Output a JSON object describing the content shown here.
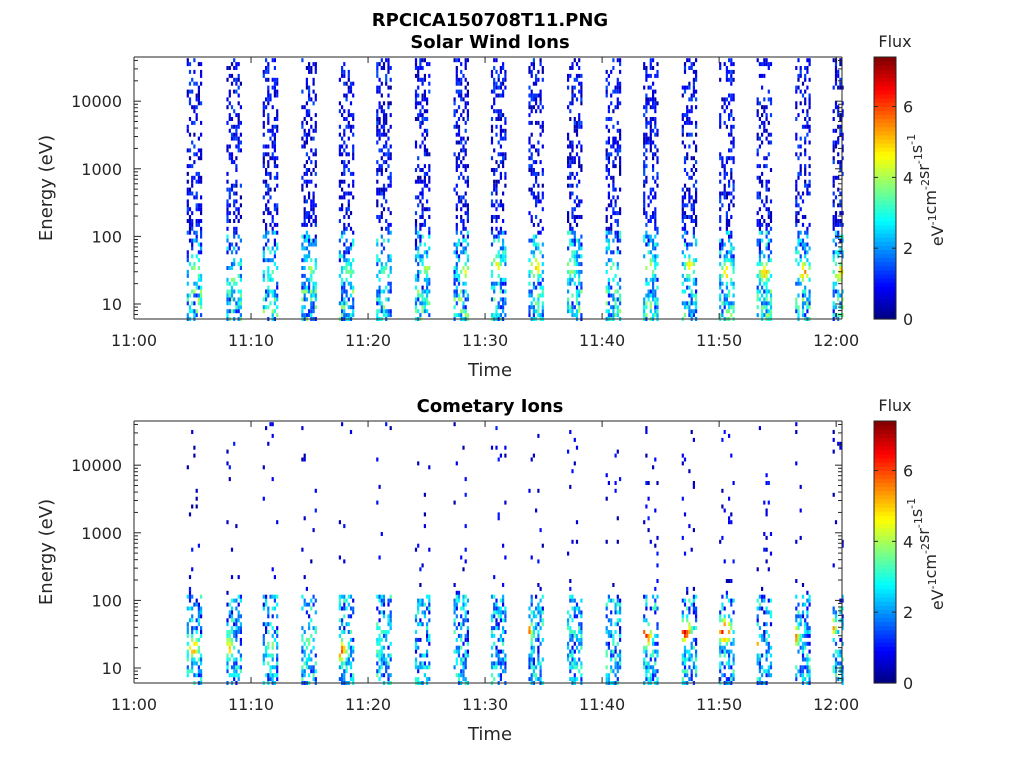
{
  "figure": {
    "title_line1": "RPCICA150708T11.PNG"
  },
  "chart_data": [
    {
      "type": "heatmap",
      "title": "Solar Wind Ions",
      "xlabel": "Time",
      "ylabel": "Energy (eV)",
      "x_ticks": [
        "11:00",
        "11:10",
        "11:20",
        "11:30",
        "11:40",
        "11:50",
        "12:00"
      ],
      "x_range_minutes": [
        0,
        60.5
      ],
      "y_scale": "log",
      "y_ticks": [
        10,
        100,
        1000,
        10000
      ],
      "y_tick_labels": [
        "10",
        "100",
        "1000",
        "10000"
      ],
      "y_range": [
        6,
        45000
      ],
      "colorbar": {
        "title": "Flux",
        "unit_label": "eV-1cm-2sr-1s-1",
        "ticks": [
          0,
          2,
          4,
          6
        ],
        "range": [
          0,
          7.4
        ],
        "colormap": "jet"
      },
      "sweep_start_minutes": [
        4.5,
        7.9,
        11.0,
        14.3,
        17.5,
        20.7,
        24.0,
        27.3,
        30.5,
        33.7,
        37.0,
        40.3,
        43.5,
        46.8,
        50.0,
        53.2,
        56.5,
        59.7
      ],
      "sweep_peaks": [
        {
          "t": 5.1,
          "e": 30,
          "flux": 4.0
        },
        {
          "t": 8.4,
          "e": 25,
          "flux": 3.5
        },
        {
          "t": 11.7,
          "e": 30,
          "flux": 3.0
        },
        {
          "t": 15.0,
          "e": 35,
          "flux": 3.6
        },
        {
          "t": 18.2,
          "e": 30,
          "flux": 3.4
        },
        {
          "t": 21.4,
          "e": 30,
          "flux": 3.2
        },
        {
          "t": 25.0,
          "e": 35,
          "flux": 3.8
        },
        {
          "t": 28.2,
          "e": 30,
          "flux": 4.0
        },
        {
          "t": 30.9,
          "e": 35,
          "flux": 4.4
        },
        {
          "t": 34.2,
          "e": 35,
          "flux": 4.8
        },
        {
          "t": 37.3,
          "e": 35,
          "flux": 4.0
        },
        {
          "t": 40.8,
          "e": 30,
          "flux": 3.6
        },
        {
          "t": 44.0,
          "e": 35,
          "flux": 4.2
        },
        {
          "t": 47.4,
          "e": 35,
          "flux": 4.4
        },
        {
          "t": 50.6,
          "e": 30,
          "flux": 5.0
        },
        {
          "t": 53.8,
          "e": 30,
          "flux": 4.8
        },
        {
          "t": 57.2,
          "e": 30,
          "flux": 5.0
        },
        {
          "t": 60.2,
          "e": 30,
          "flux": 4.6
        }
      ],
      "seed": 11
    },
    {
      "type": "heatmap",
      "title": "Cometary Ions",
      "xlabel": "Time",
      "ylabel": "Energy (eV)",
      "x_ticks": [
        "11:00",
        "11:10",
        "11:20",
        "11:30",
        "11:40",
        "11:50",
        "12:00"
      ],
      "x_range_minutes": [
        0,
        60.5
      ],
      "y_scale": "log",
      "y_ticks": [
        10,
        100,
        1000,
        10000
      ],
      "y_tick_labels": [
        "10",
        "100",
        "1000",
        "10000"
      ],
      "y_range": [
        6,
        45000
      ],
      "colorbar": {
        "title": "Flux",
        "unit_label": "eV-1cm-2sr-1s-1",
        "ticks": [
          0,
          2,
          4,
          6
        ],
        "range": [
          0,
          7.4
        ],
        "colormap": "jet"
      },
      "sweep_start_minutes": [
        4.5,
        7.9,
        11.0,
        14.3,
        17.5,
        20.7,
        24.0,
        27.3,
        30.5,
        33.7,
        37.0,
        40.3,
        43.5,
        46.8,
        50.0,
        53.2,
        56.5,
        59.7
      ],
      "sweep_peaks": [
        {
          "t": 5.0,
          "e": 20,
          "flux": 5.0
        },
        {
          "t": 8.0,
          "e": 20,
          "flux": 4.6
        },
        {
          "t": 11.6,
          "e": 20,
          "flux": 3.6
        },
        {
          "t": 14.8,
          "e": 25,
          "flux": 3.4
        },
        {
          "t": 17.6,
          "e": 18,
          "flux": 5.4
        },
        {
          "t": 20.8,
          "e": 20,
          "flux": 3.2
        },
        {
          "t": 26.8,
          "e": 28,
          "flux": 5.6
        },
        {
          "t": 29.7,
          "e": 30,
          "flux": 6.0
        },
        {
          "t": 33.4,
          "e": 35,
          "flux": 6.4
        },
        {
          "t": 36.5,
          "e": 35,
          "flux": 5.2
        },
        {
          "t": 39.5,
          "e": 20,
          "flux": 3.8
        },
        {
          "t": 43.6,
          "e": 30,
          "flux": 6.2
        },
        {
          "t": 47.0,
          "e": 35,
          "flux": 6.2
        },
        {
          "t": 50.4,
          "e": 35,
          "flux": 6.6
        },
        {
          "t": 52.8,
          "e": 25,
          "flux": 6.8
        },
        {
          "t": 56.2,
          "e": 30,
          "flux": 6.6
        },
        {
          "t": 59.4,
          "e": 40,
          "flux": 5.8
        }
      ],
      "seed": 29
    }
  ]
}
